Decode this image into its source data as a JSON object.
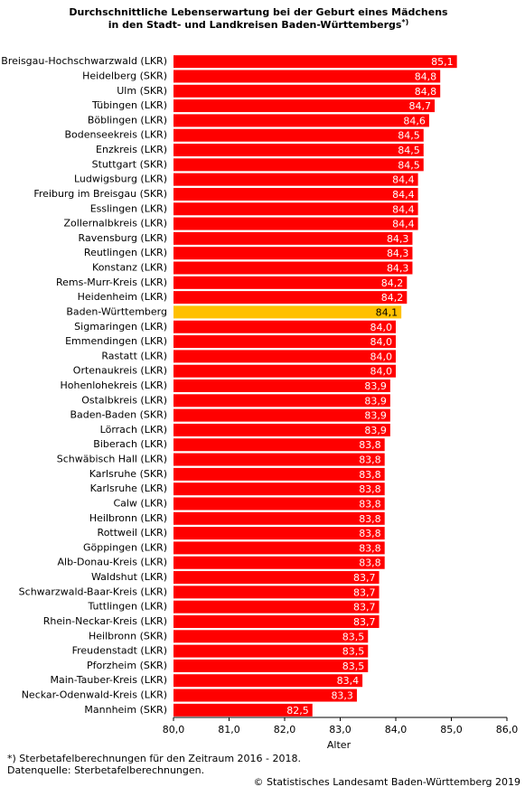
{
  "chart_data": {
    "type": "barh",
    "title": [
      "Durchschnittliche Lebenserwartung bei der Geburt eines Mädchens",
      "in den Stadt- und Landkreisen Baden-Württembergs"
    ],
    "title_note": "*)",
    "categories": [
      "Breisgau-Hochschwarzwald (LKR)",
      "Heidelberg (SKR)",
      "Ulm (SKR)",
      "Tübingen (LKR)",
      "Böblingen (LKR)",
      "Bodenseekreis (LKR)",
      "Enzkreis (LKR)",
      "Stuttgart (SKR)",
      "Ludwigsburg (LKR)",
      "Freiburg im Breisgau (SKR)",
      "Esslingen (LKR)",
      "Zollernalbkreis (LKR)",
      "Ravensburg (LKR)",
      "Reutlingen (LKR)",
      "Konstanz (LKR)",
      "Rems-Murr-Kreis (LKR)",
      "Heidenheim (LKR)",
      "Baden-Württemberg",
      "Sigmaringen (LKR)",
      "Emmendingen (LKR)",
      "Rastatt (LKR)",
      "Ortenaukreis (LKR)",
      "Hohenlohekreis (LKR)",
      "Ostalbkreis (LKR)",
      "Baden-Baden (SKR)",
      "Lörrach (LKR)",
      "Biberach (LKR)",
      "Schwäbisch Hall (LKR)",
      "Karlsruhe (SKR)",
      "Karlsruhe (LKR)",
      "Calw (LKR)",
      "Heilbronn (LKR)",
      "Rottweil (LKR)",
      "Göppingen (LKR)",
      "Alb-Donau-Kreis (LKR)",
      "Waldshut (LKR)",
      "Schwarzwald-Baar-Kreis (LKR)",
      "Tuttlingen (LKR)",
      "Rhein-Neckar-Kreis (LKR)",
      "Heilbronn (SKR)",
      "Freudenstadt (LKR)",
      "Pforzheim (SKR)",
      "Main-Tauber-Kreis (LKR)",
      "Neckar-Odenwald-Kreis (LKR)",
      "Mannheim (SKR)"
    ],
    "values": [
      85.1,
      84.8,
      84.8,
      84.7,
      84.6,
      84.5,
      84.5,
      84.5,
      84.4,
      84.4,
      84.4,
      84.4,
      84.3,
      84.3,
      84.3,
      84.2,
      84.2,
      84.1,
      84.0,
      84.0,
      84.0,
      84.0,
      83.9,
      83.9,
      83.9,
      83.9,
      83.8,
      83.8,
      83.8,
      83.8,
      83.8,
      83.8,
      83.8,
      83.8,
      83.8,
      83.7,
      83.7,
      83.7,
      83.7,
      83.5,
      83.5,
      83.5,
      83.4,
      83.3,
      82.5
    ],
    "value_labels": [
      "85,1",
      "84,8",
      "84,8",
      "84,7",
      "84,6",
      "84,5",
      "84,5",
      "84,5",
      "84,4",
      "84,4",
      "84,4",
      "84,4",
      "84,3",
      "84,3",
      "84,3",
      "84,2",
      "84,2",
      "84,1",
      "84,0",
      "84,0",
      "84,0",
      "84,0",
      "83,9",
      "83,9",
      "83,9",
      "83,9",
      "83,8",
      "83,8",
      "83,8",
      "83,8",
      "83,8",
      "83,8",
      "83,8",
      "83,8",
      "83,8",
      "83,7",
      "83,7",
      "83,7",
      "83,7",
      "83,5",
      "83,5",
      "83,5",
      "83,4",
      "83,3",
      "82,5"
    ],
    "colors": [
      "#ff0000",
      "#ff0000",
      "#ff0000",
      "#ff0000",
      "#ff0000",
      "#ff0000",
      "#ff0000",
      "#ff0000",
      "#ff0000",
      "#ff0000",
      "#ff0000",
      "#ff0000",
      "#ff0000",
      "#ff0000",
      "#ff0000",
      "#ff0000",
      "#ff0000",
      "#ffc000",
      "#ff0000",
      "#ff0000",
      "#ff0000",
      "#ff0000",
      "#ff0000",
      "#ff0000",
      "#ff0000",
      "#ff0000",
      "#ff0000",
      "#ff0000",
      "#ff0000",
      "#ff0000",
      "#ff0000",
      "#ff0000",
      "#ff0000",
      "#ff0000",
      "#ff0000",
      "#ff0000",
      "#ff0000",
      "#ff0000",
      "#ff0000",
      "#ff0000",
      "#ff0000",
      "#ff0000",
      "#ff0000",
      "#ff0000",
      "#ff0000"
    ],
    "xlim": [
      80,
      86
    ],
    "xticks": [
      {
        "value": 80,
        "label": "80,0"
      },
      {
        "value": 81,
        "label": "81,0"
      },
      {
        "value": 82,
        "label": "82,0"
      },
      {
        "value": 83,
        "label": "83,0"
      },
      {
        "value": 84,
        "label": "84,0"
      },
      {
        "value": 85,
        "label": "85,0"
      },
      {
        "value": 86,
        "label": "86,0"
      }
    ],
    "xlabel": "Alter",
    "footnote": "*) Sterbetafelberechnungen für den Zeitraum 2016 - 2018.",
    "source": "Datenquelle: Sterbetafelberechnungen.",
    "copyright": "© Statistisches Landesamt Baden-Württemberg 2019"
  }
}
